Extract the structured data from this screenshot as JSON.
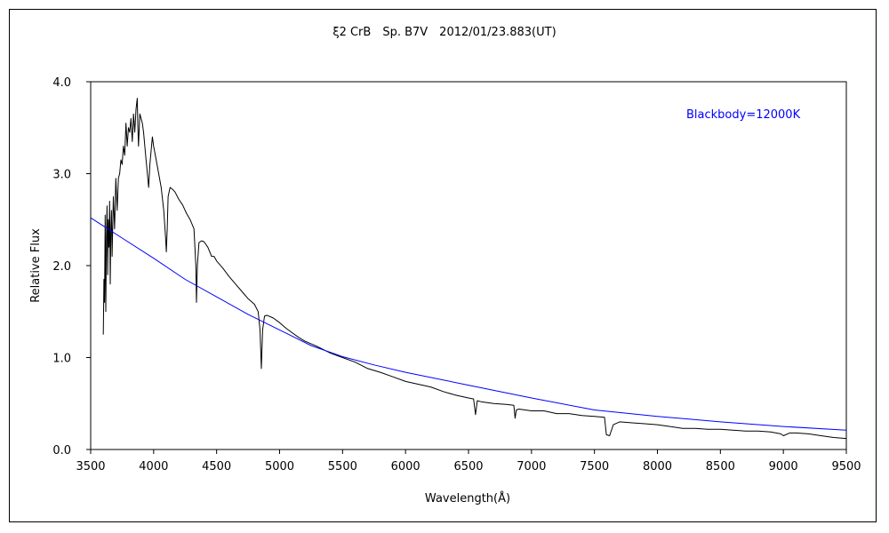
{
  "chart_data": {
    "type": "line",
    "title": "ξ2 CrB　Sp. B7V　2012/01/23.883(UT)",
    "xlabel": "Wavelength(Å)",
    "ylabel": "Relative Flux",
    "xlim": [
      3500,
      9500
    ],
    "ylim": [
      0,
      4
    ],
    "x_ticks": [
      3500,
      4000,
      4500,
      5000,
      5500,
      6000,
      6500,
      7000,
      7500,
      8000,
      8500,
      9000,
      9500
    ],
    "y_ticks": [
      0,
      1,
      2,
      3,
      4
    ],
    "y_tick_labels": [
      "0.0",
      "1.0",
      "2.0",
      "3.0",
      "4.0"
    ],
    "grid": false,
    "series": [
      {
        "name": "",
        "color": "#000000",
        "points": [
          [
            3600,
            1.25
          ],
          [
            3605,
            1.85
          ],
          [
            3610,
            1.6
          ],
          [
            3615,
            2.55
          ],
          [
            3620,
            1.5
          ],
          [
            3625,
            2.3
          ],
          [
            3630,
            2.65
          ],
          [
            3635,
            1.9
          ],
          [
            3640,
            2.5
          ],
          [
            3645,
            2.2
          ],
          [
            3650,
            2.7
          ],
          [
            3655,
            1.8
          ],
          [
            3660,
            2.4
          ],
          [
            3665,
            2.6
          ],
          [
            3670,
            2.1
          ],
          [
            3680,
            2.75
          ],
          [
            3690,
            2.4
          ],
          [
            3700,
            2.95
          ],
          [
            3710,
            2.6
          ],
          [
            3720,
            2.95
          ],
          [
            3730,
            3.0
          ],
          [
            3740,
            3.15
          ],
          [
            3750,
            3.1
          ],
          [
            3760,
            3.3
          ],
          [
            3770,
            3.2
          ],
          [
            3780,
            3.55
          ],
          [
            3790,
            3.3
          ],
          [
            3800,
            3.5
          ],
          [
            3810,
            3.45
          ],
          [
            3820,
            3.6
          ],
          [
            3830,
            3.35
          ],
          [
            3840,
            3.65
          ],
          [
            3850,
            3.45
          ],
          [
            3860,
            3.7
          ],
          [
            3870,
            3.82
          ],
          [
            3875,
            3.5
          ],
          [
            3880,
            3.3
          ],
          [
            3890,
            3.65
          ],
          [
            3900,
            3.6
          ],
          [
            3910,
            3.55
          ],
          [
            3920,
            3.45
          ],
          [
            3930,
            3.3
          ],
          [
            3940,
            3.15
          ],
          [
            3950,
            3.0
          ],
          [
            3960,
            2.85
          ],
          [
            3970,
            3.1
          ],
          [
            3980,
            3.25
          ],
          [
            3990,
            3.4
          ],
          [
            4000,
            3.3
          ],
          [
            4020,
            3.15
          ],
          [
            4040,
            3.0
          ],
          [
            4060,
            2.85
          ],
          [
            4080,
            2.6
          ],
          [
            4095,
            2.3
          ],
          [
            4101,
            2.15
          ],
          [
            4108,
            2.4
          ],
          [
            4115,
            2.75
          ],
          [
            4130,
            2.85
          ],
          [
            4150,
            2.83
          ],
          [
            4170,
            2.8
          ],
          [
            4200,
            2.72
          ],
          [
            4230,
            2.66
          ],
          [
            4260,
            2.57
          ],
          [
            4290,
            2.5
          ],
          [
            4320,
            2.4
          ],
          [
            4335,
            2.0
          ],
          [
            4340,
            1.6
          ],
          [
            4347,
            2.0
          ],
          [
            4360,
            2.25
          ],
          [
            4380,
            2.27
          ],
          [
            4400,
            2.26
          ],
          [
            4430,
            2.2
          ],
          [
            4460,
            2.1
          ],
          [
            4480,
            2.1
          ],
          [
            4500,
            2.05
          ],
          [
            4550,
            1.97
          ],
          [
            4600,
            1.88
          ],
          [
            4650,
            1.8
          ],
          [
            4700,
            1.72
          ],
          [
            4750,
            1.64
          ],
          [
            4800,
            1.58
          ],
          [
            4830,
            1.5
          ],
          [
            4845,
            1.3
          ],
          [
            4855,
            0.88
          ],
          [
            4865,
            1.3
          ],
          [
            4880,
            1.45
          ],
          [
            4900,
            1.46
          ],
          [
            4950,
            1.43
          ],
          [
            5000,
            1.38
          ],
          [
            5050,
            1.32
          ],
          [
            5100,
            1.27
          ],
          [
            5150,
            1.22
          ],
          [
            5200,
            1.18
          ],
          [
            5300,
            1.12
          ],
          [
            5400,
            1.05
          ],
          [
            5500,
            1.0
          ],
          [
            5600,
            0.95
          ],
          [
            5700,
            0.88
          ],
          [
            5800,
            0.84
          ],
          [
            5900,
            0.79
          ],
          [
            6000,
            0.74
          ],
          [
            6100,
            0.71
          ],
          [
            6200,
            0.68
          ],
          [
            6300,
            0.63
          ],
          [
            6400,
            0.59
          ],
          [
            6500,
            0.56
          ],
          [
            6540,
            0.55
          ],
          [
            6556,
            0.38
          ],
          [
            6570,
            0.53
          ],
          [
            6600,
            0.52
          ],
          [
            6700,
            0.5
          ],
          [
            6800,
            0.49
          ],
          [
            6860,
            0.48
          ],
          [
            6870,
            0.34
          ],
          [
            6880,
            0.43
          ],
          [
            6900,
            0.44
          ],
          [
            7000,
            0.42
          ],
          [
            7100,
            0.42
          ],
          [
            7200,
            0.39
          ],
          [
            7300,
            0.39
          ],
          [
            7400,
            0.37
          ],
          [
            7500,
            0.36
          ],
          [
            7580,
            0.35
          ],
          [
            7595,
            0.16
          ],
          [
            7620,
            0.15
          ],
          [
            7650,
            0.27
          ],
          [
            7700,
            0.3
          ],
          [
            7800,
            0.29
          ],
          [
            7900,
            0.28
          ],
          [
            8000,
            0.27
          ],
          [
            8100,
            0.25
          ],
          [
            8200,
            0.23
          ],
          [
            8300,
            0.23
          ],
          [
            8400,
            0.22
          ],
          [
            8500,
            0.22
          ],
          [
            8600,
            0.21
          ],
          [
            8700,
            0.2
          ],
          [
            8800,
            0.2
          ],
          [
            8900,
            0.19
          ],
          [
            8980,
            0.17
          ],
          [
            9000,
            0.15
          ],
          [
            9050,
            0.18
          ],
          [
            9100,
            0.18
          ],
          [
            9200,
            0.17
          ],
          [
            9300,
            0.15
          ],
          [
            9400,
            0.13
          ],
          [
            9500,
            0.12
          ]
        ]
      },
      {
        "name": "Blackbody=12000K",
        "color": "#0000ff",
        "points": [
          [
            3500,
            2.52
          ],
          [
            3750,
            2.3
          ],
          [
            4000,
            2.08
          ],
          [
            4250,
            1.85
          ],
          [
            4500,
            1.66
          ],
          [
            4750,
            1.47
          ],
          [
            5000,
            1.3
          ],
          [
            5250,
            1.13
          ],
          [
            5500,
            1.01
          ],
          [
            5750,
            0.92
          ],
          [
            6000,
            0.84
          ],
          [
            6500,
            0.7
          ],
          [
            7000,
            0.56
          ],
          [
            7500,
            0.43
          ],
          [
            8000,
            0.36
          ],
          [
            8500,
            0.3
          ],
          [
            9000,
            0.25
          ],
          [
            9500,
            0.21
          ]
        ]
      }
    ],
    "legend": {
      "text": "Blackbody=12000K",
      "color": "#0000ff",
      "placement": "top-right"
    }
  }
}
